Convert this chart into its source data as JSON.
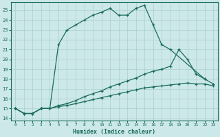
{
  "xlabel": "Humidex (Indice chaleur)",
  "bg_color": "#cce8e8",
  "grid_color": "#aacfcf",
  "line_color": "#1a6b5a",
  "xlim": [
    -0.5,
    23.5
  ],
  "ylim": [
    13.8,
    25.8
  ],
  "xticks": [
    0,
    1,
    2,
    3,
    4,
    5,
    6,
    7,
    8,
    9,
    10,
    11,
    12,
    13,
    14,
    15,
    16,
    17,
    18,
    19,
    20,
    21,
    22,
    23
  ],
  "yticks": [
    14,
    15,
    16,
    17,
    18,
    19,
    20,
    21,
    22,
    23,
    24,
    25
  ],
  "line1_x": [
    0,
    1,
    2,
    3,
    4,
    5,
    6,
    7,
    8,
    9,
    10,
    11,
    12,
    13,
    14,
    15,
    16,
    17,
    18,
    22,
    23
  ],
  "line1_y": [
    15,
    14.5,
    14.5,
    15,
    15,
    21.5,
    23,
    23.5,
    24,
    24.5,
    24.8,
    25.2,
    24.5,
    24.5,
    25.2,
    25.5,
    23.5,
    21.5,
    21,
    18,
    17.5
  ],
  "line2_x": [
    0,
    1,
    2,
    3,
    4,
    5,
    6,
    7,
    8,
    9,
    10,
    11,
    12,
    13,
    14,
    15,
    16,
    17,
    18,
    19,
    20,
    21,
    22
  ],
  "line2_y": [
    15,
    14.5,
    14.5,
    15,
    15,
    15.3,
    15.5,
    15.8,
    16.2,
    16.5,
    16.8,
    17.2,
    17.5,
    17.8,
    18.1,
    18.5,
    18.8,
    19.0,
    19.3,
    21,
    20,
    18.5,
    18
  ],
  "line3_x": [
    0,
    1,
    2,
    3,
    4,
    5,
    6,
    7,
    8,
    9,
    10,
    11,
    12,
    13,
    14,
    15,
    16,
    17,
    18,
    19,
    20,
    21,
    22,
    23
  ],
  "line3_y": [
    15,
    14.5,
    14.5,
    15,
    15,
    15.2,
    15.3,
    15.5,
    15.7,
    15.9,
    16.1,
    16.3,
    16.5,
    16.7,
    16.9,
    17.1,
    17.2,
    17.3,
    17.4,
    17.5,
    17.6,
    17.5,
    17.5,
    17.3
  ]
}
